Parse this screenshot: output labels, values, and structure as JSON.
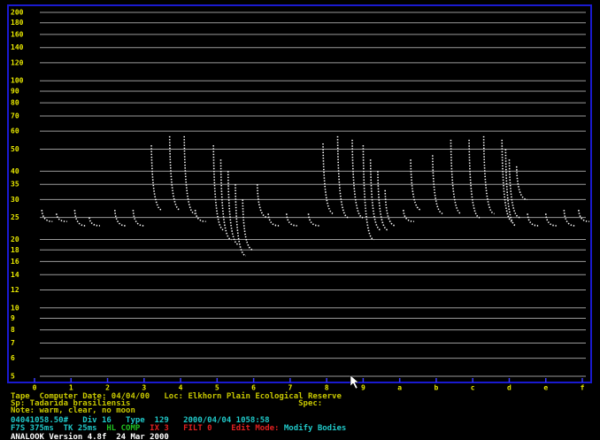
{
  "chart_data": {
    "type": "pulse",
    "log_scale": true,
    "grid": true,
    "color": "#ffffff",
    "axis_color": "#e8e800",
    "frame_color": "#1a1ad0",
    "ylim": [
      5,
      200
    ],
    "yticks": [
      200,
      180,
      160,
      140,
      120,
      100,
      90,
      80,
      70,
      60,
      50,
      40,
      35,
      30,
      25,
      20,
      18,
      16,
      14,
      12,
      10,
      9,
      8,
      7,
      6,
      5
    ],
    "xlim": [
      0,
      15
    ],
    "xticks": [
      0,
      1,
      2,
      3,
      4,
      5,
      6,
      7,
      8,
      9,
      {
        "value": 10,
        "label": "a"
      },
      {
        "value": 11,
        "label": "b"
      },
      {
        "value": 12,
        "label": "c"
      },
      {
        "value": 13,
        "label": "d"
      },
      {
        "value": 14,
        "label": "e"
      },
      {
        "value": 15,
        "label": "f"
      }
    ],
    "x": [
      0.2,
      0.6,
      1.1,
      1.5,
      2.2,
      2.7,
      3.2,
      3.7,
      4.1,
      4.4,
      4.9,
      5.1,
      5.3,
      5.5,
      5.7,
      6.1,
      6.4,
      6.9,
      7.5,
      7.9,
      8.3,
      8.7,
      9.0,
      9.2,
      9.4,
      9.6,
      10.1,
      10.3,
      10.9,
      11.4,
      11.9,
      12.3,
      12.8,
      12.9,
      13.0,
      13.2,
      13.5,
      14.0,
      14.5,
      14.9
    ],
    "high": [
      27,
      26,
      27,
      25,
      27,
      27,
      52,
      57,
      57,
      27,
      52,
      45,
      40,
      35,
      30,
      35,
      26,
      26,
      26,
      53,
      57,
      55,
      52,
      45,
      40,
      33,
      27,
      45,
      47,
      55,
      55,
      57,
      55,
      50,
      45,
      42,
      26,
      26,
      27,
      27
    ],
    "low": [
      24,
      24,
      23,
      23,
      23,
      23,
      27,
      27,
      26,
      24,
      22,
      20,
      19,
      17,
      18,
      25,
      23,
      23,
      23,
      26,
      25,
      25,
      20,
      22,
      22,
      23,
      24,
      27,
      26,
      26,
      25,
      26,
      24,
      23,
      25,
      30,
      23,
      23,
      23,
      24
    ]
  },
  "status_bar": {
    "rows": [
      [
        {
          "text": "Tape  Computer Date: 04/04/00   Loc: Elkhorn Plain Ecological Reserve",
          "color": "#c8c800"
        }
      ],
      [
        {
          "text": "Sp: Tadarida brasiliensis                                   Spec:",
          "color": "#c8c800"
        }
      ],
      [
        {
          "text": "Note: warm, clear, no moon",
          "color": "#c8c800"
        }
      ],
      [
        {
          "text": "04041058.50#   Div 16   Type  129   2000/04/04 1058:58",
          "color": "#20c8c8"
        }
      ],
      [
        {
          "text": "F7S 375ms  TK 25ms  ",
          "color": "#20c8c8"
        },
        {
          "text": "HL COMP  ",
          "color": "#20c020"
        },
        {
          "text": "IX 3   FILT 0    ",
          "color": "#e02020"
        },
        {
          "text": "Edit Mode: ",
          "color": "#e02020"
        },
        {
          "text": "Modify Bodies",
          "color": "#20c8c8"
        }
      ],
      [
        {
          "text": "ANALOOK Version 4.8f  24 Mar 2000",
          "color": "#ffffff"
        }
      ]
    ]
  }
}
